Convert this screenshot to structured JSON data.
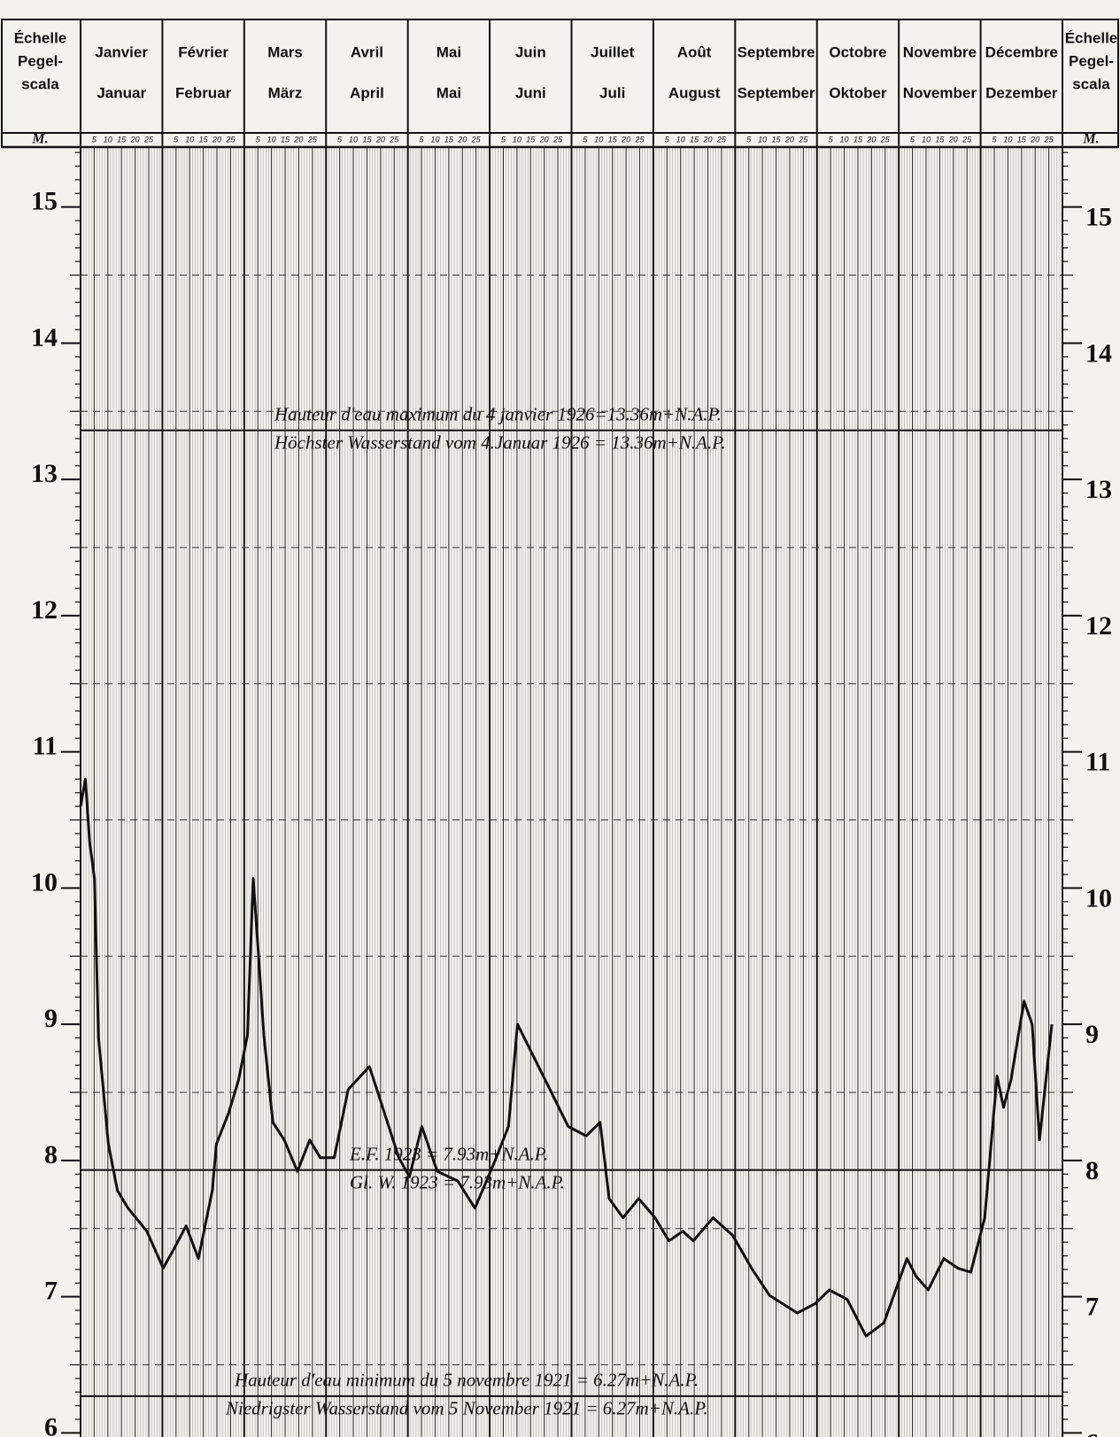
{
  "chart_data": {
    "type": "line",
    "y_axis_label": [
      "Échelle",
      "Pegel-",
      "scala"
    ],
    "y_unit": "M.",
    "months_fr": [
      "Janvier",
      "Février",
      "Mars",
      "Avril",
      "Mai",
      "Juin",
      "Juillet",
      "Août",
      "Septembre",
      "Octobre",
      "Novembre",
      "Décembre"
    ],
    "months_de": [
      "Januar",
      "Februar",
      "März",
      "April",
      "Mai",
      "Juni",
      "Juli",
      "August",
      "September",
      "Oktober",
      "November",
      "Dezember"
    ],
    "day_ticks": [
      5,
      10,
      15,
      20,
      25
    ],
    "xlim": [
      0,
      12
    ],
    "ylim": [
      5.97,
      15.44
    ],
    "yticks": [
      6,
      7,
      8,
      9,
      10,
      11,
      12,
      13,
      14,
      15
    ],
    "grid": true,
    "series": [
      {
        "color": "#111111",
        "x": [
          0,
          0.06,
          0.11,
          0.17,
          0.22,
          0.34,
          0.45,
          0.58,
          0.81,
          1.01,
          1.14,
          1.29,
          1.44,
          1.61,
          1.66,
          1.81,
          1.93,
          2.04,
          2.11,
          2.18,
          2.24,
          2.35,
          2.49,
          2.65,
          2.8,
          2.93,
          3.1,
          3.27,
          3.53,
          3.66,
          3.89,
          4.02,
          4.17,
          4.36,
          4.61,
          4.82,
          5.06,
          5.23,
          5.34,
          5.68,
          5.96,
          6.18,
          6.35,
          6.46,
          6.63,
          6.82,
          7.02,
          7.19,
          7.36,
          7.49,
          7.73,
          7.97,
          8.2,
          8.42,
          8.76,
          8.98,
          9.15,
          9.37,
          9.6,
          9.82,
          10.1,
          10.21,
          10.36,
          10.55,
          10.72,
          10.88,
          11.05,
          11.2,
          11.28,
          11.37,
          11.53,
          11.63,
          11.72,
          11.87
        ],
        "values": [
          10.6,
          10.8,
          10.34,
          10.07,
          8.9,
          8.12,
          7.78,
          7.65,
          7.48,
          7.21,
          7.35,
          7.52,
          7.28,
          7.78,
          8.12,
          8.35,
          8.59,
          8.92,
          10.07,
          9.46,
          8.92,
          8.28,
          8.15,
          7.92,
          8.15,
          8.02,
          8.02,
          8.52,
          8.69,
          8.45,
          8.02,
          7.88,
          8.25,
          7.92,
          7.85,
          7.65,
          7.99,
          8.25,
          9.0,
          8.59,
          8.25,
          8.18,
          8.28,
          7.72,
          7.58,
          7.72,
          7.58,
          7.41,
          7.48,
          7.41,
          7.58,
          7.45,
          7.21,
          7.01,
          6.88,
          6.95,
          7.05,
          6.98,
          6.71,
          6.81,
          7.28,
          7.15,
          7.05,
          7.28,
          7.21,
          7.18,
          7.58,
          8.62,
          8.39,
          8.59,
          9.17,
          9.0,
          8.15,
          9.0
        ]
      }
    ],
    "reference_lines": [
      {
        "value": 13.36,
        "labels": [
          "Hauteur d'eau maximum du 4 janvier 1926=13.36m+N.A.P.",
          "Höchster Wasserstand vom 4.Januar 1926 = 13.36m+N.A.P."
        ]
      },
      {
        "value": 7.93,
        "labels": [
          "E.F.   1923 = 7.93m+N.A.P.",
          "Gl. W.   1923 = 7.93m+N.A.P."
        ]
      },
      {
        "value": 6.27,
        "labels": [
          "Hauteur d'eau minimum du 5 novembre 1921 = 6.27m+N.A.P.",
          "Niedrigster Wasserstand vom 5 November 1921 = 6.27m+N.A.P."
        ]
      }
    ]
  }
}
